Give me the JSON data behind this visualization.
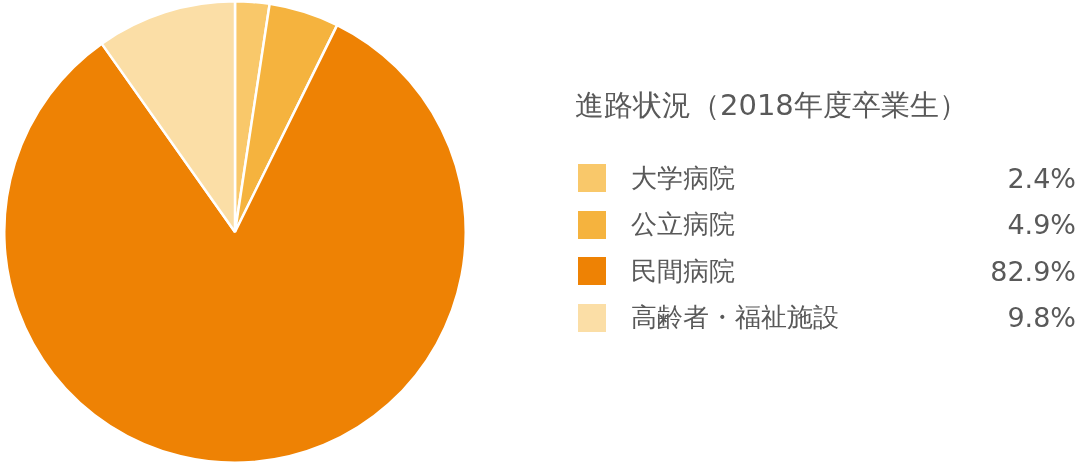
{
  "chart_data": {
    "type": "pie",
    "title": "進路状況（2018年度卒業生）",
    "categories": [
      "大学病院",
      "公立病院",
      "民間病院",
      "高齢者・福祉施設"
    ],
    "values": [
      2.4,
      4.9,
      82.9,
      9.8
    ],
    "value_labels": [
      "2.4%",
      "4.9%",
      "82.9%",
      "9.8%"
    ],
    "colors": [
      "#f9c86a",
      "#f5b33e",
      "#ee8204",
      "#fbdea6"
    ],
    "legend": "right"
  }
}
